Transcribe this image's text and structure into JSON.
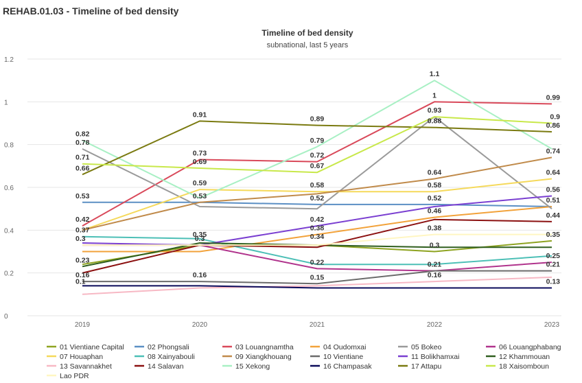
{
  "page": {
    "title": "REHAB.01.03 - Timeline of bed density"
  },
  "chart_data": {
    "type": "line",
    "title": "Timeline of bed density",
    "subtitle": "subnational, last 5 years",
    "x": [
      "2019",
      "2020",
      "2021",
      "2022",
      "2023"
    ],
    "ylim": [
      0,
      1.2
    ],
    "yticks": [
      "0",
      "0.2",
      "0.4",
      "0.6",
      "0.8",
      "1",
      "1.2"
    ],
    "grid": true,
    "legend_position": "bottom",
    "series": [
      {
        "name": "01 Vientiane Capital",
        "color": "#8ea320",
        "values": [
          0.24,
          0.33,
          0.33,
          0.3,
          0.35
        ]
      },
      {
        "name": "02 Phongsali",
        "color": "#5b8fc4",
        "values": [
          0.53,
          0.53,
          0.52,
          0.52,
          0.51
        ]
      },
      {
        "name": "03 Louangnamtha",
        "color": "#d9495a",
        "values": [
          0.42,
          0.73,
          0.72,
          1.0,
          0.99
        ]
      },
      {
        "name": "04 Oudomxai",
        "color": "#f2a23a",
        "values": [
          0.3,
          0.3,
          0.38,
          0.46,
          0.51
        ]
      },
      {
        "name": "05 Bokeo",
        "color": "#9a9a9a",
        "values": [
          0.78,
          0.51,
          0.5,
          0.93,
          0.5
        ]
      },
      {
        "name": "06 Louangphabang",
        "color": "#b0338c",
        "values": [
          0.33,
          0.33,
          0.22,
          0.21,
          0.25
        ]
      },
      {
        "name": "07 Houaphan",
        "color": "#f5d95a",
        "values": [
          0.4,
          0.59,
          0.58,
          0.58,
          0.64
        ]
      },
      {
        "name": "08 Xainyabouli",
        "color": "#4cbfb6",
        "values": [
          0.37,
          0.36,
          0.24,
          0.24,
          0.28
        ]
      },
      {
        "name": "09 Xiangkhouang",
        "color": "#c08a4a",
        "values": [
          0.4,
          0.53,
          0.57,
          0.64,
          0.74
        ]
      },
      {
        "name": "10 Vientiane",
        "color": "#6b6b6b",
        "values": [
          0.16,
          0.16,
          0.15,
          0.21,
          0.21
        ]
      },
      {
        "name": "11 Bolikhamxai",
        "color": "#7a3fd1",
        "values": [
          0.34,
          0.33,
          0.42,
          0.51,
          0.56
        ]
      },
      {
        "name": "12 Khammouan",
        "color": "#2f5e1e",
        "values": [
          0.23,
          0.34,
          0.33,
          0.32,
          0.32
        ]
      },
      {
        "name": "13 Savannakhet",
        "color": "#f7b8c4",
        "values": [
          0.1,
          0.13,
          0.14,
          0.16,
          0.18
        ]
      },
      {
        "name": "14 Salavan",
        "color": "#8b1010",
        "values": [
          0.2,
          0.33,
          0.32,
          0.45,
          0.44
        ]
      },
      {
        "name": "15 Xekong",
        "color": "#a8f0c4",
        "values": [
          0.82,
          0.55,
          0.79,
          1.1,
          0.78
        ]
      },
      {
        "name": "16 Champasak",
        "color": "#0a0a5a",
        "values": [
          0.14,
          0.14,
          0.13,
          0.13,
          0.13
        ]
      },
      {
        "name": "17 Attapu",
        "color": "#7a7a10",
        "values": [
          0.66,
          0.91,
          0.89,
          0.88,
          0.86
        ]
      },
      {
        "name": "18 Xaisomboun",
        "color": "#c8e84a",
        "values": [
          0.71,
          0.69,
          0.67,
          0.93,
          0.9
        ]
      },
      {
        "name": "Lao PDR",
        "color": "#fff6c2",
        "values": [
          0.33,
          0.33,
          0.33,
          0.38,
          0.38
        ]
      }
    ],
    "data_labels": [
      {
        "x": "2019",
        "y": 0.82,
        "text": "0.82"
      },
      {
        "x": "2019",
        "y": 0.78,
        "text": "0.78"
      },
      {
        "x": "2019",
        "y": 0.71,
        "text": "0.71"
      },
      {
        "x": "2019",
        "y": 0.66,
        "text": "0.66"
      },
      {
        "x": "2019",
        "y": 0.53,
        "text": "0.53"
      },
      {
        "x": "2019",
        "y": 0.42,
        "text": "0.42"
      },
      {
        "x": "2019",
        "y": 0.37,
        "text": "0.37"
      },
      {
        "x": "2019",
        "y": 0.33,
        "text": "0.3"
      },
      {
        "x": "2019",
        "y": 0.23,
        "text": "0.23"
      },
      {
        "x": "2019",
        "y": 0.16,
        "text": "0.16"
      },
      {
        "x": "2019",
        "y": 0.13,
        "text": "0.1"
      },
      {
        "x": "2020",
        "y": 0.91,
        "text": "0.91"
      },
      {
        "x": "2020",
        "y": 0.73,
        "text": "0.73"
      },
      {
        "x": "2020",
        "y": 0.69,
        "text": "0.69"
      },
      {
        "x": "2020",
        "y": 0.59,
        "text": "0.59"
      },
      {
        "x": "2020",
        "y": 0.53,
        "text": "0.53"
      },
      {
        "x": "2020",
        "y": 0.35,
        "text": "0.35"
      },
      {
        "x": "2020",
        "y": 0.33,
        "text": "0.3"
      },
      {
        "x": "2020",
        "y": 0.16,
        "text": "0.16"
      },
      {
        "x": "2021",
        "y": 0.89,
        "text": "0.89"
      },
      {
        "x": "2021",
        "y": 0.79,
        "text": "0.79"
      },
      {
        "x": "2021",
        "y": 0.72,
        "text": "0.72"
      },
      {
        "x": "2021",
        "y": 0.67,
        "text": "0.67"
      },
      {
        "x": "2021",
        "y": 0.58,
        "text": "0.58"
      },
      {
        "x": "2021",
        "y": 0.52,
        "text": "0.52"
      },
      {
        "x": "2021",
        "y": 0.42,
        "text": "0.42"
      },
      {
        "x": "2021",
        "y": 0.38,
        "text": "0.38"
      },
      {
        "x": "2021",
        "y": 0.34,
        "text": "0.34"
      },
      {
        "x": "2021",
        "y": 0.22,
        "text": "0.22"
      },
      {
        "x": "2021",
        "y": 0.15,
        "text": "0.15"
      },
      {
        "x": "2022",
        "y": 1.1,
        "text": "1.1"
      },
      {
        "x": "2022",
        "y": 1.0,
        "text": "1"
      },
      {
        "x": "2022",
        "y": 0.93,
        "text": "0.93"
      },
      {
        "x": "2022",
        "y": 0.88,
        "text": "0.88"
      },
      {
        "x": "2022",
        "y": 0.64,
        "text": "0.64"
      },
      {
        "x": "2022",
        "y": 0.58,
        "text": "0.58"
      },
      {
        "x": "2022",
        "y": 0.52,
        "text": "0.52"
      },
      {
        "x": "2022",
        "y": 0.46,
        "text": "0.46"
      },
      {
        "x": "2022",
        "y": 0.38,
        "text": "0.38"
      },
      {
        "x": "2022",
        "y": 0.3,
        "text": "0.3"
      },
      {
        "x": "2022",
        "y": 0.21,
        "text": "0.21"
      },
      {
        "x": "2022",
        "y": 0.16,
        "text": "0.16"
      },
      {
        "x": "2023",
        "y": 0.99,
        "text": "0.99"
      },
      {
        "x": "2023",
        "y": 0.9,
        "text": "0.9"
      },
      {
        "x": "2023",
        "y": 0.86,
        "text": "0.86"
      },
      {
        "x": "2023",
        "y": 0.74,
        "text": "0.74"
      },
      {
        "x": "2023",
        "y": 0.64,
        "text": "0.64"
      },
      {
        "x": "2023",
        "y": 0.56,
        "text": "0.56"
      },
      {
        "x": "2023",
        "y": 0.51,
        "text": "0.51"
      },
      {
        "x": "2023",
        "y": 0.44,
        "text": "0.44"
      },
      {
        "x": "2023",
        "y": 0.35,
        "text": "0.35"
      },
      {
        "x": "2023",
        "y": 0.25,
        "text": "0.25"
      },
      {
        "x": "2023",
        "y": 0.21,
        "text": "0.21"
      },
      {
        "x": "2023",
        "y": 0.13,
        "text": "0.13"
      }
    ]
  }
}
